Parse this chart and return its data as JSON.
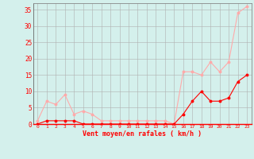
{
  "xlabel": "Vent moyen/en rafales ( km/h )",
  "x_values": [
    0,
    1,
    2,
    3,
    4,
    5,
    6,
    7,
    8,
    9,
    10,
    11,
    12,
    13,
    14,
    15,
    16,
    17,
    18,
    19,
    20,
    21,
    22,
    23
  ],
  "y_mean": [
    0,
    1,
    1,
    1,
    1,
    0,
    0,
    0,
    0,
    0,
    0,
    0,
    0,
    0,
    0,
    0,
    3,
    7,
    10,
    7,
    7,
    8,
    13,
    15
  ],
  "y_gust": [
    1,
    7,
    6,
    9,
    3,
    4,
    3,
    1,
    1,
    1,
    1,
    1,
    1,
    1,
    1,
    0,
    16,
    16,
    15,
    19,
    16,
    19,
    34,
    36
  ],
  "mean_color": "#ff0000",
  "gust_color": "#ffaaaa",
  "bg_color": "#d4f0ec",
  "grid_color": "#b0b0b0",
  "ylim": [
    0,
    37
  ],
  "xlim": [
    -0.5,
    23.5
  ],
  "yticks": [
    0,
    5,
    10,
    15,
    20,
    25,
    30,
    35
  ],
  "xticks": [
    0,
    1,
    2,
    3,
    4,
    5,
    6,
    7,
    8,
    9,
    10,
    11,
    12,
    13,
    14,
    15,
    16,
    17,
    18,
    19,
    20,
    21,
    22,
    23
  ]
}
